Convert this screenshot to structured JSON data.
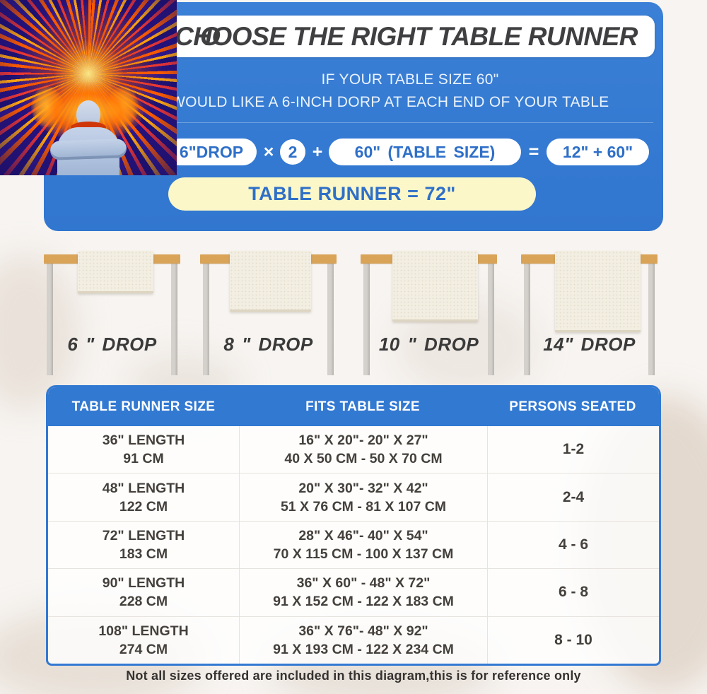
{
  "header": {
    "title_partial_prefix": "O",
    "title": "CHOOSE THE RIGHT TABLE RUNNER",
    "line1": "IF YOUR TABLE SIZE 60\"",
    "line2": "WOULD LIKE A 6-INCH DORP AT EACH END OF YOUR TABLE",
    "formula": {
      "drop_pill": "6\"DROP",
      "times": "×",
      "multiplier": "2",
      "plus": "+",
      "table_size_pill": "60\" (TABLE SIZE)",
      "equals": "=",
      "sum_pill": "12\" + 60\"",
      "result_pill": "TABLE RUNNER = 72\""
    }
  },
  "hero_image": {
    "name": "psychedelic-mind-energy-figure"
  },
  "drop_diagrams": {
    "items": [
      {
        "label": "6 \" DROP"
      },
      {
        "label": "8 \" DROP"
      },
      {
        "label": "10 \" DROP"
      },
      {
        "label": "14\" DROP"
      }
    ]
  },
  "size_chart": {
    "headers": [
      "TABLE RUNNER SIZE",
      "FITS TABLE SIZE",
      "PERSONS SEATED"
    ],
    "rows": [
      {
        "size_in": "36\" LENGTH",
        "size_cm": "91 CM",
        "fits_in": "16\" X 20\"- 20\" X 27\"",
        "fits_cm": "40 X 50 CM - 50 X 70 CM",
        "persons": "1-2"
      },
      {
        "size_in": "48\" LENGTH",
        "size_cm": "122 CM",
        "fits_in": "20\" X 30\"- 32\" X 42\"",
        "fits_cm": "51 X 76 CM - 81 X 107 CM",
        "persons": "2-4"
      },
      {
        "size_in": "72\" LENGTH",
        "size_cm": "183 CM",
        "fits_in": "28\" X 46\"- 40\" X 54\"",
        "fits_cm": "70 X 115 CM - 100 X 137 CM",
        "persons": "4 - 6"
      },
      {
        "size_in": "90\" LENGTH",
        "size_cm": "228 CM",
        "fits_in": "36\" X 60\" - 48\" X 72\"",
        "fits_cm": "91 X 152 CM - 122 X 183 CM",
        "persons": "6 - 8"
      },
      {
        "size_in": "108\" LENGTH",
        "size_cm": "274 CM",
        "fits_in": "36\" X 76\"- 48\" X 92\"",
        "fits_cm": "91 X 193 CM - 122 X 234 CM",
        "persons": "8 - 10"
      }
    ]
  },
  "footer": {
    "note": "Not all sizes offered are included in this diagram,this is for reference only"
  },
  "colors": {
    "panel_blue": "#3279d2",
    "pill_text_blue": "#2e6fc8",
    "yellow_pill_bg": "#fbf7c9",
    "tabletop_tan": "#d9a458",
    "leg_gray": "#c9c6c1",
    "runner_cream": "#f3eee2",
    "title_text": "#3f3f41",
    "body_text": "#44403c"
  }
}
